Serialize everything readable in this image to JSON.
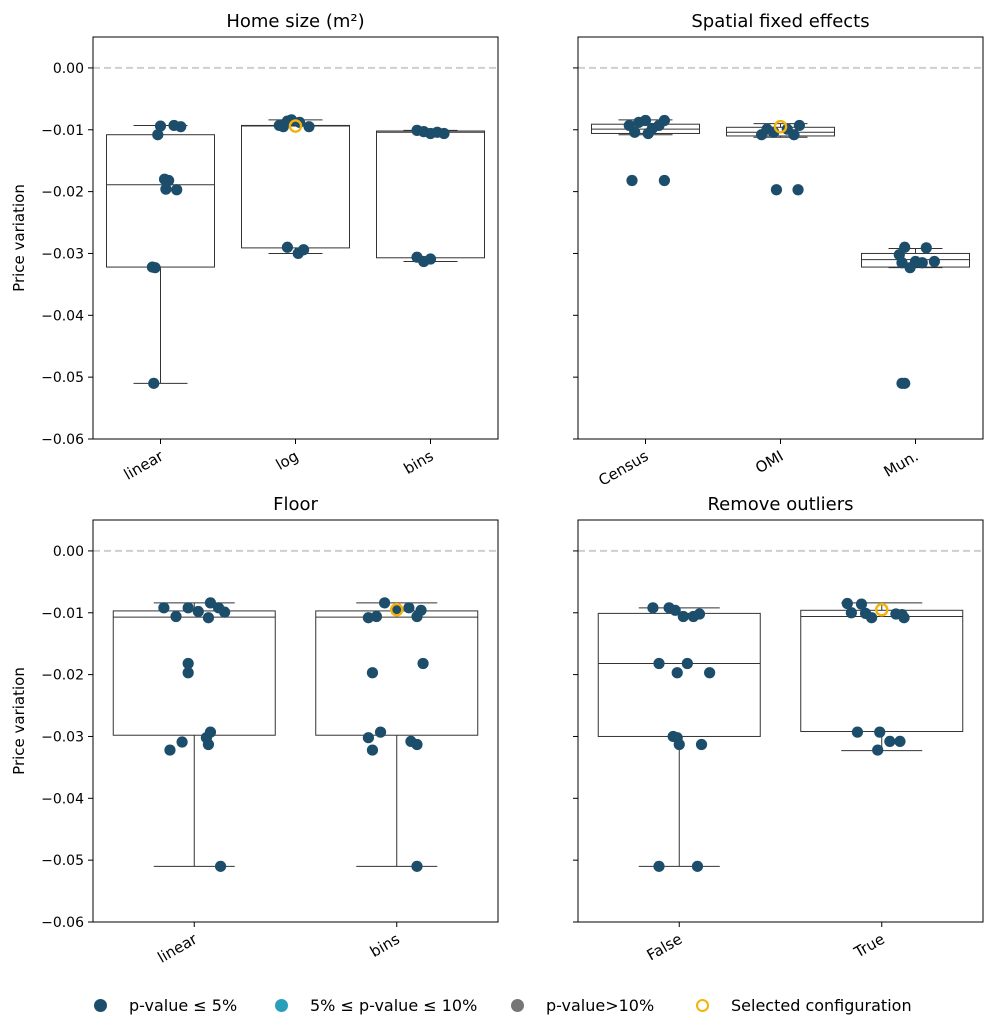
{
  "colors": {
    "sig5": "#1c4e6b",
    "sig10": "#2a9fbb",
    "nonsig": "#767676",
    "selected": "#f5b20a",
    "zero_line": "#cfcfcf",
    "axis": "#000000",
    "box": "#333333"
  },
  "legend": [
    {
      "label": "p-value ≤ 5%",
      "marker": "sig5-dot"
    },
    {
      "label": "5% ≤ p-value ≤ 10%",
      "marker": "sig10-dot"
    },
    {
      "label": "p-value>10%",
      "marker": "nonsig-dot"
    },
    {
      "label": "Selected configuration",
      "marker": "selected-ring"
    }
  ],
  "chart_data": [
    {
      "type": "box-strip",
      "title": "Home size (m²)",
      "ylabel": "Price variation",
      "ylim": [
        -0.06,
        0.005
      ],
      "yticks": [
        0.0,
        -0.01,
        -0.02,
        -0.03,
        -0.04,
        -0.05,
        -0.06
      ],
      "ytick_labels": [
        "0.00",
        "−0.01",
        "−0.02",
        "−0.03",
        "−0.04",
        "−0.05",
        "−0.06"
      ],
      "zero_line": 0.0,
      "categories": [
        "linear",
        "log",
        "bins"
      ],
      "boxes": [
        {
          "whisker_low": -0.051,
          "q1": -0.0322,
          "median": -0.0189,
          "q3": -0.0108,
          "whisker_high": -0.0093
        },
        {
          "whisker_low": -0.03,
          "q1": -0.0291,
          "median": -0.0094,
          "q3": -0.0093,
          "whisker_high": -0.0084
        },
        {
          "whisker_low": -0.0313,
          "q1": -0.0307,
          "median": -0.0104,
          "q3": -0.0102,
          "whisker_high": -0.0101
        }
      ],
      "points": [
        [
          {
            "jitter": 0.0,
            "y": -0.0094
          },
          {
            "jitter": 0.15,
            "y": -0.0095
          },
          {
            "jitter": 0.1,
            "y": -0.0093
          },
          {
            "jitter": -0.02,
            "y": -0.0108
          },
          {
            "jitter": 0.03,
            "y": -0.018
          },
          {
            "jitter": 0.06,
            "y": -0.0182
          },
          {
            "jitter": 0.04,
            "y": -0.0196
          },
          {
            "jitter": 0.12,
            "y": -0.0197
          },
          {
            "jitter": -0.06,
            "y": -0.0322
          },
          {
            "jitter": -0.04,
            "y": -0.0323
          },
          {
            "jitter": -0.05,
            "y": -0.051
          }
        ],
        [
          {
            "jitter": -0.12,
            "y": -0.0093
          },
          {
            "jitter": -0.09,
            "y": -0.0095
          },
          {
            "jitter": -0.06,
            "y": -0.0086
          },
          {
            "jitter": -0.03,
            "y": -0.0084
          },
          {
            "jitter": 0.03,
            "y": -0.0088
          },
          {
            "jitter": 0.1,
            "y": -0.0095
          },
          {
            "jitter": -0.06,
            "y": -0.029
          },
          {
            "jitter": 0.02,
            "y": -0.03
          },
          {
            "jitter": 0.06,
            "y": -0.0294
          }
        ],
        [
          {
            "jitter": -0.1,
            "y": -0.0101
          },
          {
            "jitter": -0.05,
            "y": -0.0103
          },
          {
            "jitter": 0.0,
            "y": -0.0106
          },
          {
            "jitter": 0.05,
            "y": -0.0104
          },
          {
            "jitter": 0.1,
            "y": -0.0106
          },
          {
            "jitter": -0.1,
            "y": -0.0306
          },
          {
            "jitter": -0.05,
            "y": -0.0313
          },
          {
            "jitter": 0.0,
            "y": -0.0309
          }
        ]
      ],
      "selected": [
        {
          "category": 1,
          "jitter": 0.0,
          "y": -0.0094
        }
      ]
    },
    {
      "type": "box-strip",
      "title": "Spatial fixed effects",
      "ylim": [
        -0.06,
        0.005
      ],
      "yticks": [
        0.0,
        -0.01,
        -0.02,
        -0.03,
        -0.04,
        -0.05,
        -0.06
      ],
      "zero_line": 0.0,
      "categories": [
        "Census",
        "OMI",
        "Mun."
      ],
      "boxes": [
        {
          "whisker_low": -0.0108,
          "q1": -0.0106,
          "median": -0.0099,
          "q3": -0.0091,
          "whisker_high": -0.0084
        },
        {
          "whisker_low": -0.0112,
          "q1": -0.011,
          "median": -0.0104,
          "q3": -0.0096,
          "whisker_high": -0.009
        },
        {
          "whisker_low": -0.0323,
          "q1": -0.0322,
          "median": -0.031,
          "q3": -0.03,
          "whisker_high": -0.0292
        }
      ],
      "points": [
        [
          {
            "jitter": -0.12,
            "y": -0.0093
          },
          {
            "jitter": -0.08,
            "y": -0.0104
          },
          {
            "jitter": -0.05,
            "y": -0.0088
          },
          {
            "jitter": 0.0,
            "y": -0.0085
          },
          {
            "jitter": 0.05,
            "y": -0.0098
          },
          {
            "jitter": 0.1,
            "y": -0.0093
          },
          {
            "jitter": 0.14,
            "y": -0.0085
          },
          {
            "jitter": 0.02,
            "y": -0.0106
          },
          {
            "jitter": -0.1,
            "y": -0.0182
          },
          {
            "jitter": 0.14,
            "y": -0.0182
          }
        ],
        [
          {
            "jitter": -0.14,
            "y": -0.0108
          },
          {
            "jitter": -0.1,
            "y": -0.0099
          },
          {
            "jitter": -0.05,
            "y": -0.0104
          },
          {
            "jitter": 0.05,
            "y": -0.0099
          },
          {
            "jitter": 0.1,
            "y": -0.0108
          },
          {
            "jitter": 0.14,
            "y": -0.0093
          },
          {
            "jitter": -0.03,
            "y": -0.0197
          },
          {
            "jitter": 0.13,
            "y": -0.0197
          }
        ],
        [
          {
            "jitter": -0.12,
            "y": -0.0302
          },
          {
            "jitter": -0.08,
            "y": -0.029
          },
          {
            "jitter": -0.04,
            "y": -0.0323
          },
          {
            "jitter": 0.0,
            "y": -0.0313
          },
          {
            "jitter": 0.05,
            "y": -0.0315
          },
          {
            "jitter": 0.08,
            "y": -0.0291
          },
          {
            "jitter": 0.14,
            "y": -0.0313
          },
          {
            "jitter": -0.1,
            "y": -0.0315
          },
          {
            "jitter": -0.1,
            "y": -0.051
          },
          {
            "jitter": -0.08,
            "y": -0.051
          }
        ]
      ],
      "selected": [
        {
          "category": 1,
          "jitter": 0.0,
          "y": -0.0095
        }
      ]
    },
    {
      "type": "box-strip",
      "title": "Floor",
      "ylabel": "Price variation",
      "ylim": [
        -0.06,
        0.005
      ],
      "yticks": [
        0.0,
        -0.01,
        -0.02,
        -0.03,
        -0.04,
        -0.05,
        -0.06
      ],
      "ytick_labels": [
        "0.00",
        "−0.01",
        "−0.02",
        "−0.03",
        "−0.04",
        "−0.05",
        "−0.06"
      ],
      "zero_line": 0.0,
      "categories": [
        "linear",
        "bins"
      ],
      "boxes": [
        {
          "whisker_low": -0.051,
          "q1": -0.0298,
          "median": -0.0107,
          "q3": -0.0097,
          "whisker_high": -0.0084
        },
        {
          "whisker_low": -0.051,
          "q1": -0.0298,
          "median": -0.0107,
          "q3": -0.0097,
          "whisker_high": -0.0084
        }
      ],
      "points": [
        [
          {
            "jitter": -0.15,
            "y": -0.0092
          },
          {
            "jitter": -0.09,
            "y": -0.0106
          },
          {
            "jitter": -0.03,
            "y": -0.0092
          },
          {
            "jitter": 0.02,
            "y": -0.0098
          },
          {
            "jitter": 0.07,
            "y": -0.0108
          },
          {
            "jitter": 0.08,
            "y": -0.0084
          },
          {
            "jitter": 0.12,
            "y": -0.0092
          },
          {
            "jitter": 0.15,
            "y": -0.0099
          },
          {
            "jitter": -0.03,
            "y": -0.0182
          },
          {
            "jitter": -0.03,
            "y": -0.0197
          },
          {
            "jitter": 0.08,
            "y": -0.0293
          },
          {
            "jitter": 0.06,
            "y": -0.0302
          },
          {
            "jitter": -0.06,
            "y": -0.0309
          },
          {
            "jitter": 0.07,
            "y": -0.0313
          },
          {
            "jitter": -0.12,
            "y": -0.0322
          },
          {
            "jitter": 0.13,
            "y": -0.051
          }
        ],
        [
          {
            "jitter": -0.14,
            "y": -0.0108
          },
          {
            "jitter": -0.1,
            "y": -0.0106
          },
          {
            "jitter": -0.06,
            "y": -0.0084
          },
          {
            "jitter": 0.0,
            "y": -0.0095
          },
          {
            "jitter": 0.06,
            "y": -0.0092
          },
          {
            "jitter": 0.1,
            "y": -0.0106
          },
          {
            "jitter": 0.12,
            "y": -0.0096
          },
          {
            "jitter": -0.12,
            "y": -0.0197
          },
          {
            "jitter": 0.13,
            "y": -0.0182
          },
          {
            "jitter": -0.08,
            "y": -0.0293
          },
          {
            "jitter": -0.14,
            "y": -0.0302
          },
          {
            "jitter": 0.07,
            "y": -0.0308
          },
          {
            "jitter": 0.1,
            "y": -0.0313
          },
          {
            "jitter": -0.12,
            "y": -0.0322
          },
          {
            "jitter": 0.1,
            "y": -0.051
          }
        ]
      ],
      "selected": [
        {
          "category": 1,
          "jitter": 0.0,
          "y": -0.0095
        }
      ]
    },
    {
      "type": "box-strip",
      "title": "Remove outliers",
      "ylim": [
        -0.06,
        0.005
      ],
      "yticks": [
        0.0,
        -0.01,
        -0.02,
        -0.03,
        -0.04,
        -0.05,
        -0.06
      ],
      "zero_line": 0.0,
      "categories": [
        "False",
        "True"
      ],
      "boxes": [
        {
          "whisker_low": -0.051,
          "q1": -0.03,
          "median": -0.0182,
          "q3": -0.0101,
          "whisker_high": -0.0092
        },
        {
          "whisker_low": -0.0323,
          "q1": -0.0292,
          "median": -0.0106,
          "q3": -0.0096,
          "whisker_high": -0.0084
        }
      ],
      "points": [
        [
          {
            "jitter": -0.13,
            "y": -0.0092
          },
          {
            "jitter": -0.05,
            "y": -0.0092
          },
          {
            "jitter": -0.02,
            "y": -0.0096
          },
          {
            "jitter": 0.02,
            "y": -0.0106
          },
          {
            "jitter": 0.07,
            "y": -0.0106
          },
          {
            "jitter": 0.1,
            "y": -0.0102
          },
          {
            "jitter": -0.1,
            "y": -0.0182
          },
          {
            "jitter": 0.04,
            "y": -0.0182
          },
          {
            "jitter": -0.01,
            "y": -0.0197
          },
          {
            "jitter": 0.15,
            "y": -0.0197
          },
          {
            "jitter": -0.03,
            "y": -0.03
          },
          {
            "jitter": -0.01,
            "y": -0.0302
          },
          {
            "jitter": 0.0,
            "y": -0.0313
          },
          {
            "jitter": 0.11,
            "y": -0.0313
          },
          {
            "jitter": -0.1,
            "y": -0.051
          },
          {
            "jitter": 0.09,
            "y": -0.051
          }
        ],
        [
          {
            "jitter": -0.17,
            "y": -0.0085
          },
          {
            "jitter": -0.15,
            "y": -0.01
          },
          {
            "jitter": -0.1,
            "y": -0.0086
          },
          {
            "jitter": -0.08,
            "y": -0.0101
          },
          {
            "jitter": -0.05,
            "y": -0.0108
          },
          {
            "jitter": 0.07,
            "y": -0.0102
          },
          {
            "jitter": 0.1,
            "y": -0.0103
          },
          {
            "jitter": 0.11,
            "y": -0.0108
          },
          {
            "jitter": -0.12,
            "y": -0.0293
          },
          {
            "jitter": -0.01,
            "y": -0.0293
          },
          {
            "jitter": 0.04,
            "y": -0.0308
          },
          {
            "jitter": 0.09,
            "y": -0.0308
          },
          {
            "jitter": -0.02,
            "y": -0.0322
          }
        ]
      ],
      "selected": [
        {
          "category": 1,
          "jitter": 0.0,
          "y": -0.0095
        }
      ]
    }
  ]
}
